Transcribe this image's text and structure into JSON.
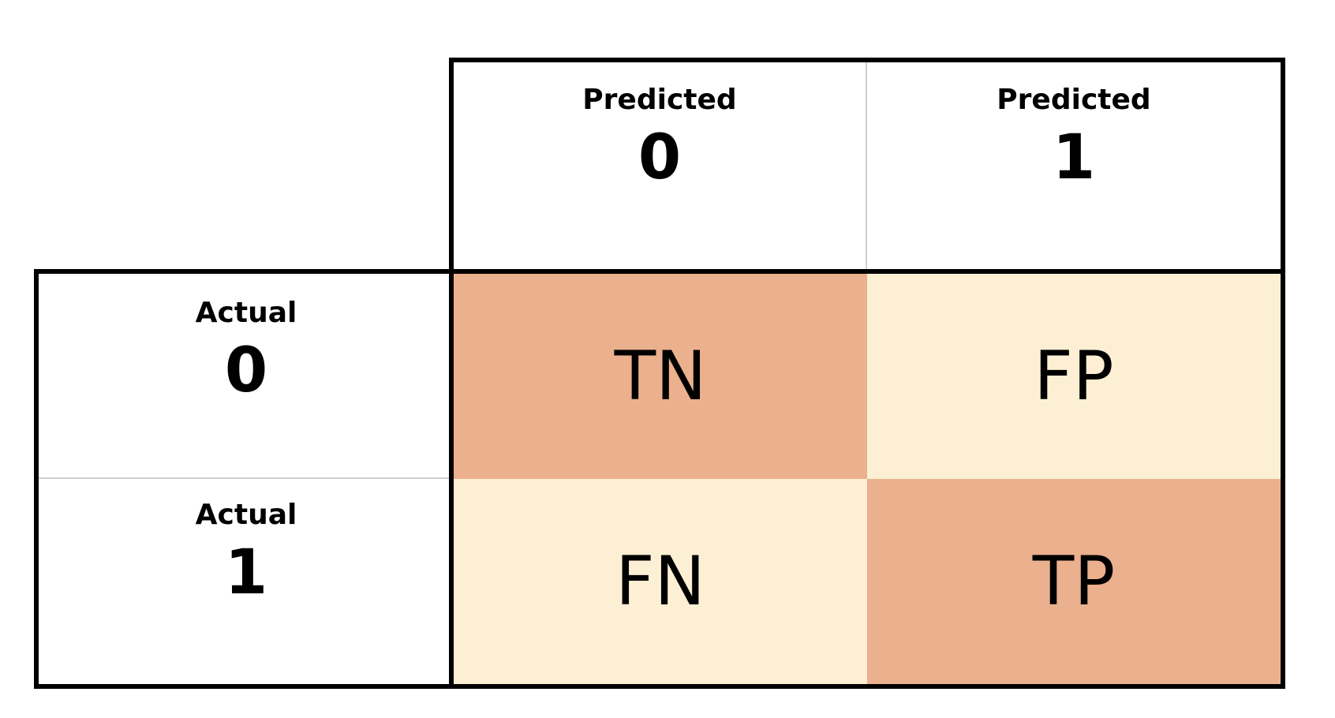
{
  "columns": [
    {
      "label": "Predicted",
      "value": "0"
    },
    {
      "label": "Predicted",
      "value": "1"
    }
  ],
  "rows": [
    {
      "label": "Actual",
      "value": "0"
    },
    {
      "label": "Actual",
      "value": "1"
    }
  ],
  "cells": [
    [
      {
        "text": "TN",
        "color": "#ebb08e"
      },
      {
        "text": "FP",
        "color": "#fcefd3"
      }
    ],
    [
      {
        "text": "FN",
        "color": "#fcefd3"
      },
      {
        "text": "TP",
        "color": "#ebb08e"
      }
    ]
  ],
  "colors": {
    "diagonal": "#ebb08e",
    "off_diagonal": "#fcefd3",
    "border": "#000000"
  }
}
